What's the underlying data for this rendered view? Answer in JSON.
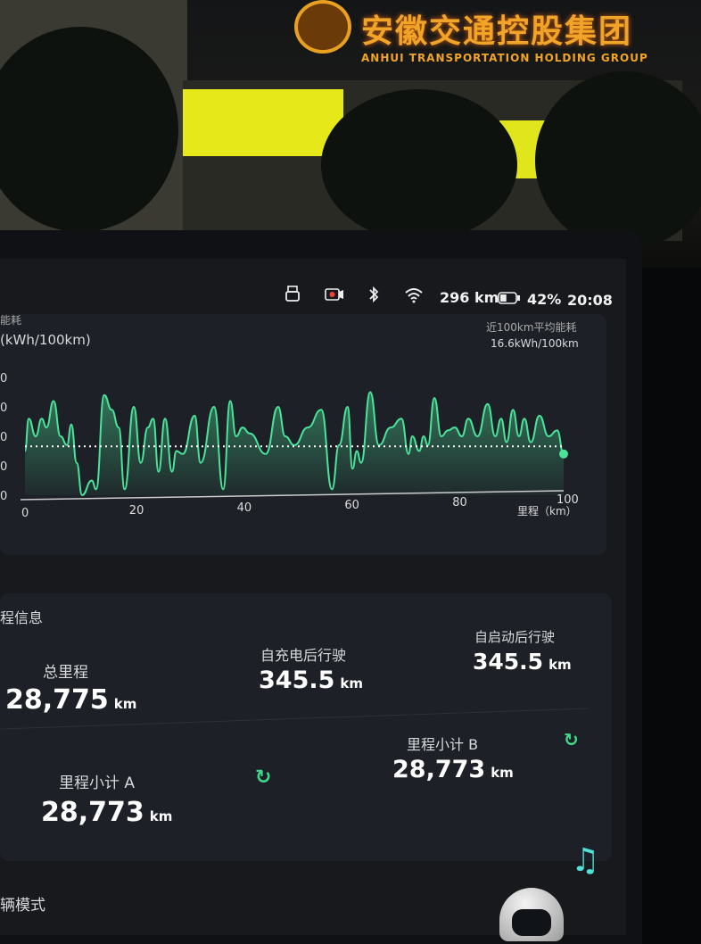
{
  "background_sign": {
    "title": "安徽交通控股集团",
    "subtitle": "ANHUI TRANSPORTATION HOLDING GROUP"
  },
  "status_bar": {
    "icons": [
      "usb-icon",
      "dashcam-recording-icon",
      "bluetooth-icon",
      "wifi-icon",
      "battery-icon"
    ],
    "range": "296 km",
    "battery_percent": "42%",
    "battery_level": 0.42,
    "time": "20:08"
  },
  "energy_chart": {
    "title_partial": "能耗",
    "unit_label": "(kWh/100km)",
    "avg_label_partial": "近100km平均能耗",
    "avg_value": "16.6kWh/100km",
    "accent": "#4be39a"
  },
  "chart_data": {
    "type": "area",
    "xlabel": "里程（km）",
    "ylabel": "(kWh/100km)",
    "xlim": [
      0,
      100
    ],
    "ylim": [
      0,
      40
    ],
    "x_ticks": [
      "0",
      "20",
      "40",
      "60",
      "80",
      "100"
    ],
    "y_ticks_visible": [
      "0",
      "0",
      "0",
      "0",
      "0"
    ],
    "average_line": 16.6,
    "grid": false,
    "points": [
      [
        0,
        15
      ],
      [
        0.7,
        26
      ],
      [
        2,
        20
      ],
      [
        3.1,
        26
      ],
      [
        4,
        23
      ],
      [
        5.3,
        32
      ],
      [
        6.6,
        20
      ],
      [
        7.8,
        17
      ],
      [
        8.6,
        24
      ],
      [
        9.6,
        11
      ],
      [
        10.6,
        0
      ],
      [
        12.4,
        5
      ],
      [
        13.2,
        2
      ],
      [
        14.7,
        34
      ],
      [
        16.1,
        29
      ],
      [
        17.4,
        23
      ],
      [
        18.5,
        2
      ],
      [
        20.2,
        30
      ],
      [
        21.5,
        11
      ],
      [
        22.8,
        23
      ],
      [
        23.8,
        26
      ],
      [
        24.8,
        8
      ],
      [
        26,
        26
      ],
      [
        27.3,
        8
      ],
      [
        28.1,
        15
      ],
      [
        29.3,
        14
      ],
      [
        31.5,
        27
      ],
      [
        32.6,
        11
      ],
      [
        35.1,
        30
      ],
      [
        36.8,
        2
      ],
      [
        38.1,
        32
      ],
      [
        39.2,
        20
      ],
      [
        40.4,
        23
      ],
      [
        41.7,
        21
      ],
      [
        44.7,
        14
      ],
      [
        47,
        30
      ],
      [
        48.3,
        20
      ],
      [
        50,
        17
      ],
      [
        52.5,
        23
      ],
      [
        55,
        29
      ],
      [
        57,
        2
      ],
      [
        58.3,
        17
      ],
      [
        59.9,
        30
      ],
      [
        60.8,
        9
      ],
      [
        61.6,
        15
      ],
      [
        62.4,
        11
      ],
      [
        64.1,
        35
      ],
      [
        65.7,
        17
      ],
      [
        67.9,
        23
      ],
      [
        69.9,
        26
      ],
      [
        71.2,
        14
      ],
      [
        71.9,
        20
      ],
      [
        73.2,
        15
      ],
      [
        74,
        20
      ],
      [
        74.8,
        17
      ],
      [
        76,
        33
      ],
      [
        77.3,
        20
      ],
      [
        78.5,
        22
      ],
      [
        79.8,
        23
      ],
      [
        81.1,
        20
      ],
      [
        82.3,
        26
      ],
      [
        84,
        20
      ],
      [
        85.9,
        31
      ],
      [
        87.3,
        20
      ],
      [
        88.4,
        26
      ],
      [
        89.4,
        18
      ],
      [
        90.6,
        29
      ],
      [
        91.7,
        20
      ],
      [
        92.7,
        26
      ],
      [
        93.9,
        18
      ],
      [
        95.5,
        27
      ],
      [
        97.2,
        20
      ],
      [
        98.8,
        22
      ],
      [
        100,
        14
      ]
    ]
  },
  "trip_info": {
    "title_partial": "程信息",
    "total": {
      "label": "总里程",
      "value": "28,775",
      "unit": "km"
    },
    "since_charge": {
      "label": "自充电后行驶",
      "value": "345.5",
      "unit": "km"
    },
    "since_start": {
      "label": "自启动后行驶",
      "value": "345.5",
      "unit": "km"
    },
    "trip_a": {
      "label": "里程小计 A",
      "value": "28,773",
      "unit": "km",
      "reset_icon": "reset-icon"
    },
    "trip_b": {
      "label": "里程小计 B",
      "value": "28,773",
      "unit": "km",
      "reset_icon": "reset-icon"
    }
  },
  "vehicle_mode": {
    "title_partial": "辆模式"
  },
  "dock": {
    "icons": [
      "music-note-icon",
      "assistant-robot-icon"
    ]
  }
}
